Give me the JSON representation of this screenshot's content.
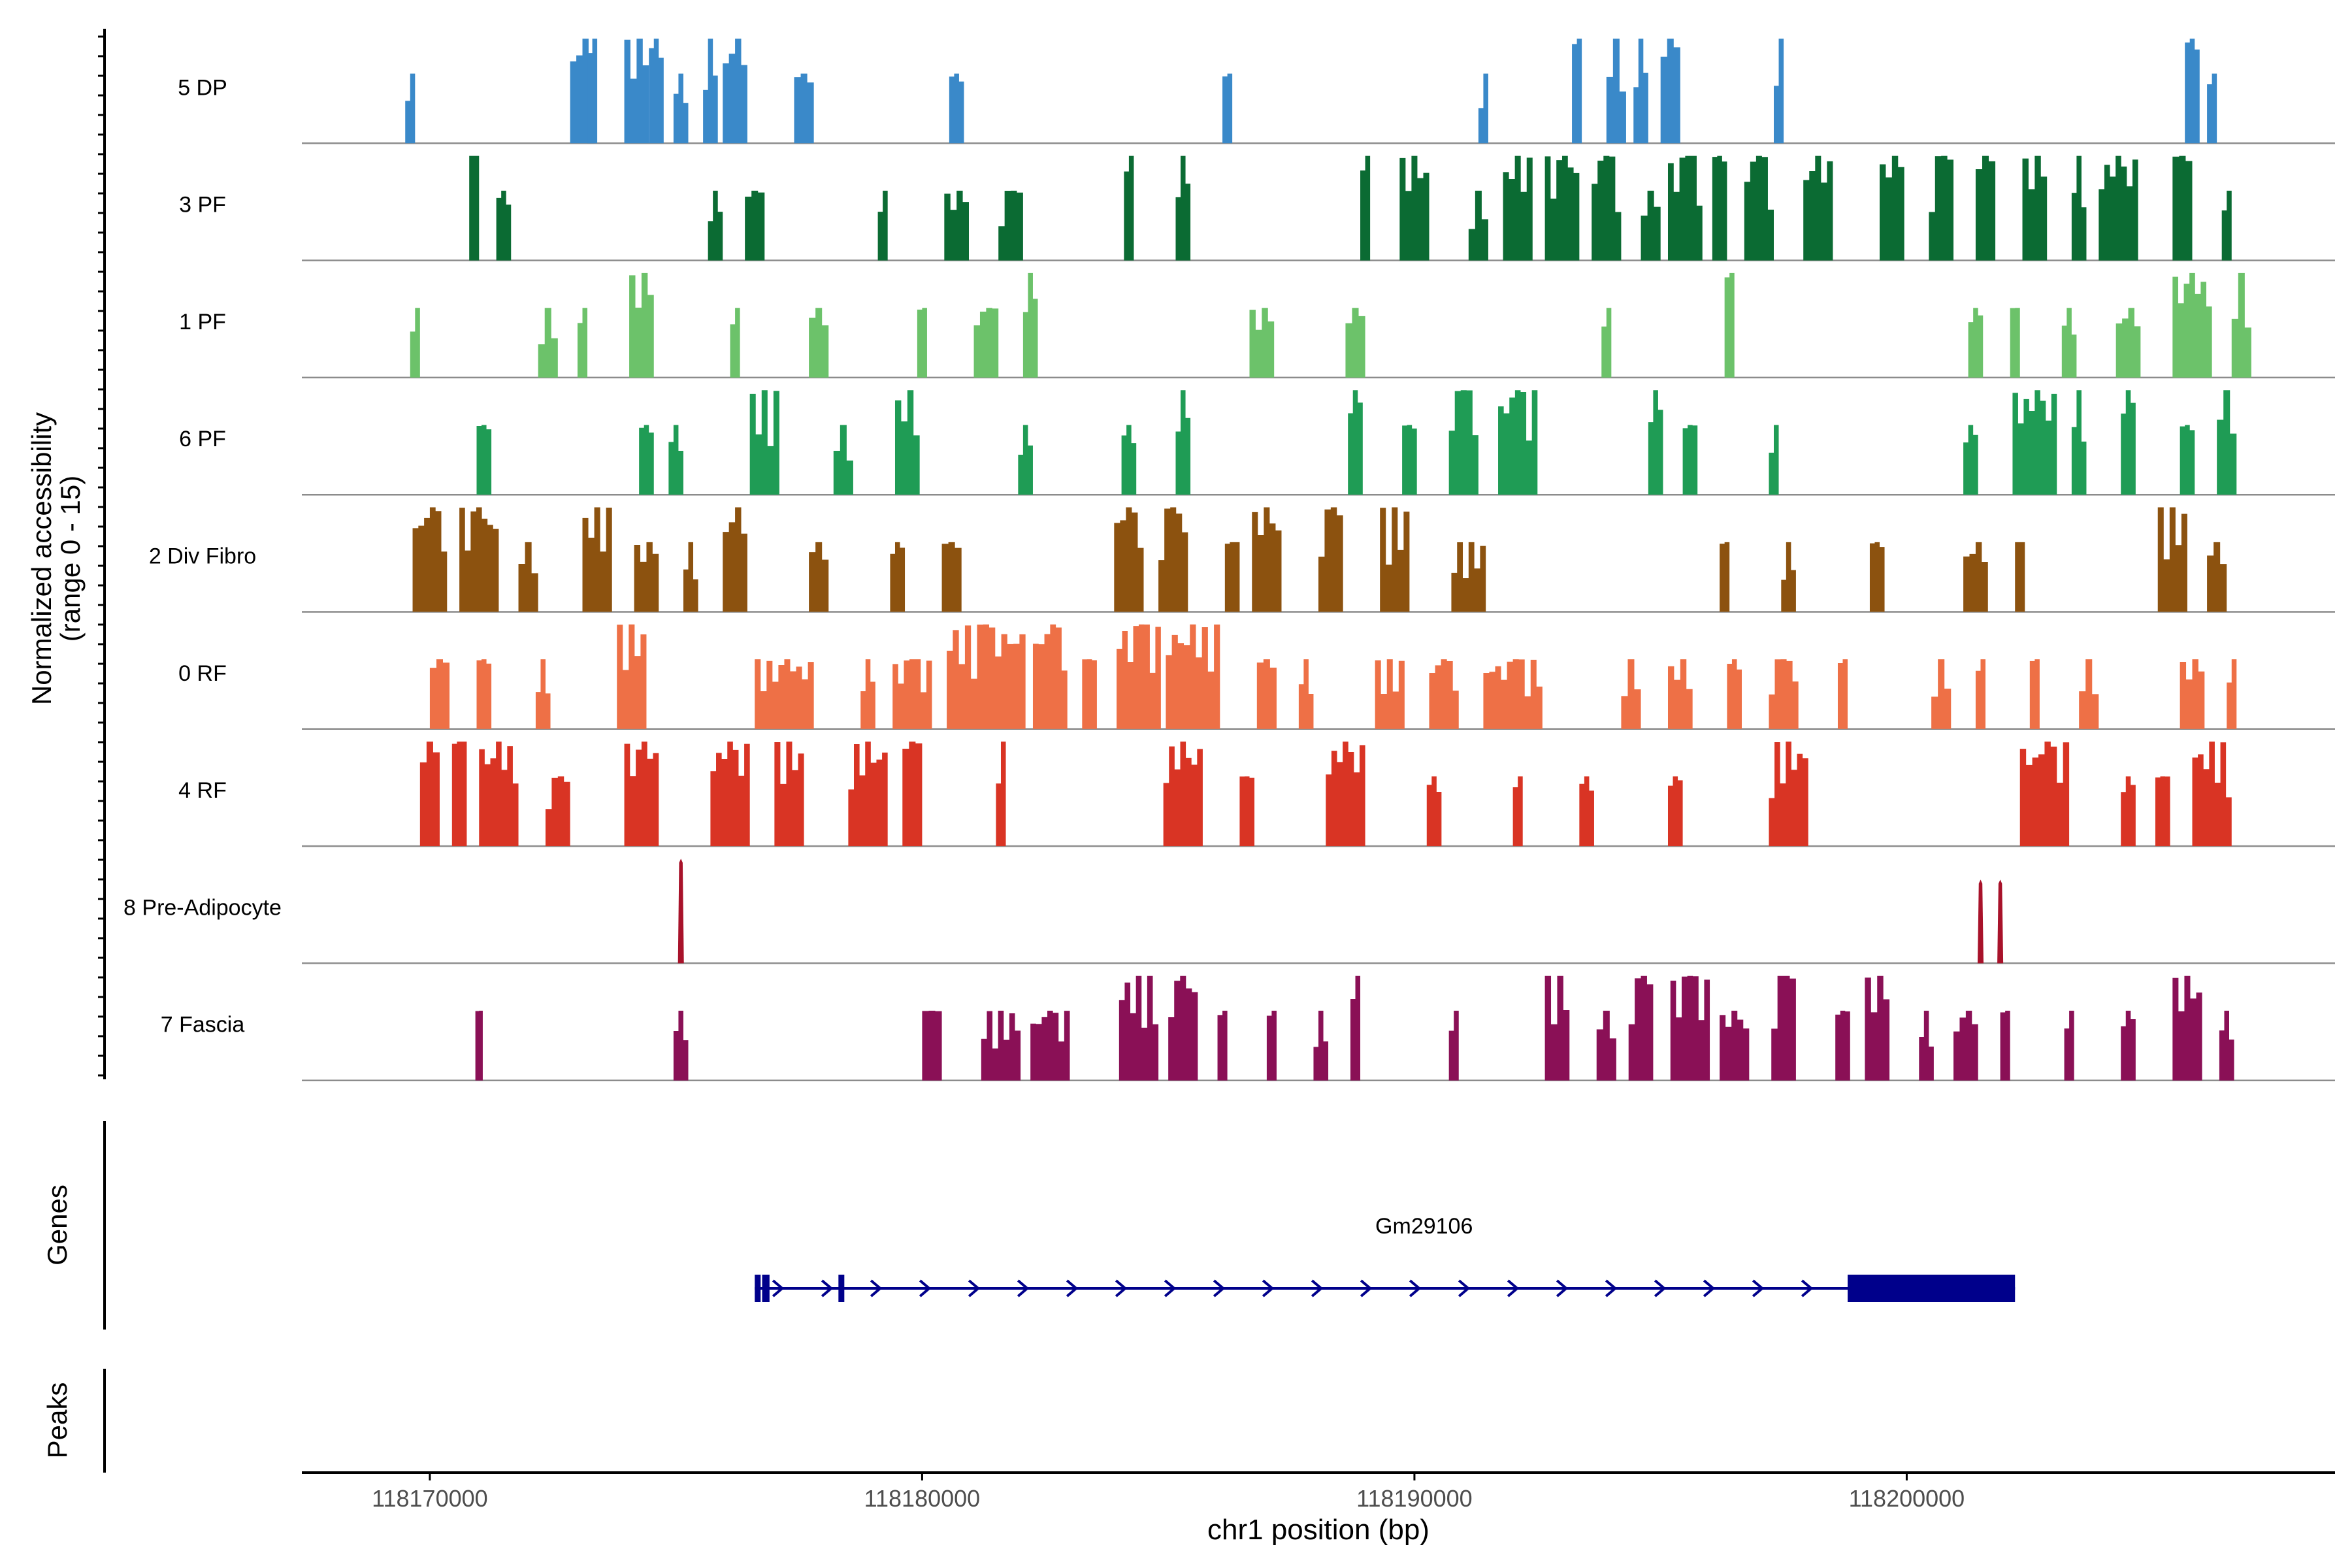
{
  "chart_data": {
    "type": "area",
    "title": "",
    "ylabel_line1": "Normalized accessibility",
    "ylabel_line2": "(range 0 - 15)",
    "ylim": [
      0,
      15
    ],
    "xlabel": "chr1 position (bp)",
    "xlim": [
      118167400,
      118208700
    ],
    "xticks": [
      118170000,
      118180000,
      118190000,
      118200000
    ],
    "xtick_labels": [
      "118170000",
      "118180000",
      "118190000",
      "118200000"
    ],
    "tracks": [
      {
        "name": "5 DP",
        "color": "#3a89c9",
        "height": 3,
        "peaks": [
          [
            118169.6,
            0.2,
            2
          ],
          [
            118173.1,
            0.5,
            4
          ],
          [
            118173.3,
            0.2,
            5
          ],
          [
            118174.2,
            0.5,
            3
          ],
          [
            118174.6,
            0.3,
            3
          ],
          [
            118175.1,
            0.3,
            2
          ],
          [
            118175.7,
            0.3,
            3
          ],
          [
            118176.2,
            0.5,
            3
          ],
          [
            118177.6,
            0.4,
            2
          ],
          [
            118180.7,
            0.3,
            2
          ],
          [
            118186.2,
            0.2,
            2
          ],
          [
            118191.4,
            0.2,
            2
          ],
          [
            118193.3,
            0.2,
            3
          ],
          [
            118194.1,
            0.4,
            3
          ],
          [
            118194.6,
            0.3,
            3
          ],
          [
            118195.2,
            0.4,
            4
          ],
          [
            118197.4,
            0.2,
            3
          ],
          [
            118205.8,
            0.3,
            3
          ],
          [
            118206.2,
            0.2,
            2
          ]
        ]
      },
      {
        "name": "3 PF",
        "color": "#0b6b33",
        "height": 3,
        "peaks": [
          [
            118170.9,
            0.2,
            3
          ],
          [
            118171.5,
            0.3,
            2
          ],
          [
            118175.8,
            0.3,
            2
          ],
          [
            118176.6,
            0.4,
            2
          ],
          [
            118179.2,
            0.2,
            2
          ],
          [
            118180.7,
            0.5,
            2
          ],
          [
            118181.8,
            0.5,
            2
          ],
          [
            118184.2,
            0.2,
            3
          ],
          [
            118185.3,
            0.3,
            3
          ],
          [
            118189,
            0.2,
            3
          ],
          [
            118190,
            0.6,
            3
          ],
          [
            118191.3,
            0.4,
            2
          ],
          [
            118192.1,
            0.6,
            4
          ],
          [
            118193,
            0.7,
            3
          ],
          [
            118193.9,
            0.6,
            4
          ],
          [
            118194.8,
            0.4,
            2
          ],
          [
            118195.5,
            0.7,
            5
          ],
          [
            118196.2,
            0.3,
            3
          ],
          [
            118197,
            0.6,
            3
          ],
          [
            118198.2,
            0.6,
            4
          ],
          [
            118199.7,
            0.5,
            3
          ],
          [
            118200.7,
            0.5,
            3
          ],
          [
            118201.6,
            0.4,
            4
          ],
          [
            118202.6,
            0.5,
            3
          ],
          [
            118203.5,
            0.3,
            3
          ],
          [
            118204.3,
            0.8,
            4
          ],
          [
            118205.6,
            0.4,
            4
          ],
          [
            118206.5,
            0.2,
            2
          ]
        ]
      },
      {
        "name": "1 PF",
        "color": "#6cc26a",
        "height": 3,
        "peaks": [
          [
            118169.7,
            0.2,
            2
          ],
          [
            118172.4,
            0.4,
            2
          ],
          [
            118173.1,
            0.2,
            2
          ],
          [
            118174.3,
            0.5,
            3
          ],
          [
            118176.2,
            0.2,
            2
          ],
          [
            118177.9,
            0.4,
            2
          ],
          [
            118180,
            0.2,
            2
          ],
          [
            118181.3,
            0.5,
            2
          ],
          [
            118182.2,
            0.3,
            3
          ],
          [
            118186.9,
            0.5,
            2
          ],
          [
            118188.8,
            0.4,
            2
          ],
          [
            118193.9,
            0.2,
            2
          ],
          [
            118196.4,
            0.2,
            3
          ],
          [
            118201.4,
            0.3,
            2
          ],
          [
            118202.2,
            0.2,
            2
          ],
          [
            118203.3,
            0.3,
            2
          ],
          [
            118204.5,
            0.5,
            2
          ],
          [
            118205.8,
            0.8,
            3
          ],
          [
            118206.8,
            0.4,
            4
          ]
        ]
      },
      {
        "name": "6 PF",
        "color": "#1f9c55",
        "height": 3,
        "peaks": [
          [
            118171.1,
            0.3,
            2
          ],
          [
            118174.4,
            0.3,
            2
          ],
          [
            118175,
            0.3,
            2
          ],
          [
            118176.8,
            0.6,
            5
          ],
          [
            118178.4,
            0.4,
            2
          ],
          [
            118179.7,
            0.5,
            3
          ],
          [
            118182.1,
            0.3,
            2
          ],
          [
            118184.2,
            0.3,
            2
          ],
          [
            118185.3,
            0.3,
            4
          ],
          [
            118188.8,
            0.3,
            3
          ],
          [
            118189.9,
            0.3,
            2
          ],
          [
            118191,
            0.6,
            4
          ],
          [
            118192.1,
            0.8,
            5
          ],
          [
            118194.9,
            0.3,
            3
          ],
          [
            118195.6,
            0.3,
            2
          ],
          [
            118197.3,
            0.2,
            2
          ],
          [
            118201.3,
            0.3,
            2
          ],
          [
            118202.6,
            0.9,
            3
          ],
          [
            118203.5,
            0.3,
            3
          ],
          [
            118204.5,
            0.3,
            3
          ],
          [
            118205.7,
            0.3,
            2
          ],
          [
            118206.5,
            0.4,
            4
          ]
        ]
      },
      {
        "name": "2 Div Fibro",
        "color": "#8c520f",
        "height": 3,
        "peaks": [
          [
            118170,
            0.7,
            3
          ],
          [
            118171,
            0.8,
            4
          ],
          [
            118172,
            0.4,
            2
          ],
          [
            118173.4,
            0.6,
            4
          ],
          [
            118174.4,
            0.5,
            2
          ],
          [
            118175.3,
            0.3,
            2
          ],
          [
            118176.2,
            0.5,
            3
          ],
          [
            118177.9,
            0.4,
            2
          ],
          [
            118179.5,
            0.3,
            2
          ],
          [
            118180.6,
            0.4,
            2
          ],
          [
            118184.2,
            0.6,
            5
          ],
          [
            118185.1,
            0.6,
            3
          ],
          [
            118186.3,
            0.3,
            2
          ],
          [
            118187,
            0.6,
            3
          ],
          [
            118188.3,
            0.5,
            4
          ],
          [
            118189.6,
            0.6,
            3
          ],
          [
            118191.1,
            0.7,
            2
          ],
          [
            118196.3,
            0.2,
            2
          ],
          [
            118197.6,
            0.3,
            2
          ],
          [
            118199.4,
            0.3,
            2
          ],
          [
            118201.4,
            0.5,
            2
          ],
          [
            118202.3,
            0.2,
            2
          ],
          [
            118205.4,
            0.6,
            3
          ],
          [
            118206.3,
            0.4,
            2
          ]
        ]
      },
      {
        "name": "0 RF",
        "color": "#ee7046",
        "height": 3,
        "peaks": [
          [
            118170.2,
            0.4,
            2
          ],
          [
            118171.1,
            0.3,
            2
          ],
          [
            118172.3,
            0.3,
            2
          ],
          [
            118174.1,
            0.6,
            3
          ],
          [
            118177.2,
            1.2,
            2
          ],
          [
            118178.9,
            0.3,
            2
          ],
          [
            118179.8,
            0.8,
            2
          ],
          [
            118181.3,
            1.6,
            4
          ],
          [
            118182.6,
            0.7,
            3
          ],
          [
            118183.4,
            0.3,
            2
          ],
          [
            118184.4,
            0.9,
            3
          ],
          [
            118185.5,
            1.1,
            3
          ],
          [
            118187,
            0.4,
            2
          ],
          [
            118187.8,
            0.3,
            2
          ],
          [
            118189.5,
            0.6,
            2
          ],
          [
            118190.6,
            0.6,
            2
          ],
          [
            118192,
            1.2,
            2
          ],
          [
            118194.4,
            0.4,
            2
          ],
          [
            118195.4,
            0.5,
            2
          ],
          [
            118196.5,
            0.3,
            2
          ],
          [
            118197.5,
            0.6,
            2
          ],
          [
            118198.7,
            0.2,
            2
          ],
          [
            118200.7,
            0.4,
            2
          ],
          [
            118201.5,
            0.2,
            2
          ],
          [
            118202.6,
            0.2,
            2
          ],
          [
            118203.7,
            0.4,
            2
          ],
          [
            118205.8,
            0.5,
            2
          ],
          [
            118206.6,
            0.2,
            2
          ]
        ]
      },
      {
        "name": "4 RF",
        "color": "#d93424",
        "height": 3,
        "peaks": [
          [
            118170,
            0.4,
            4
          ],
          [
            118170.6,
            0.3,
            10
          ],
          [
            118171.4,
            0.8,
            6
          ],
          [
            118172.6,
            0.5,
            2
          ],
          [
            118174.3,
            0.7,
            3
          ],
          [
            118176.1,
            0.8,
            3
          ],
          [
            118177.3,
            0.6,
            4
          ],
          [
            118178.9,
            0.8,
            3
          ],
          [
            118179.8,
            0.4,
            4
          ],
          [
            118181.6,
            0.2,
            3
          ],
          [
            118185.3,
            0.8,
            4
          ],
          [
            118186.6,
            0.3,
            2
          ],
          [
            118188.6,
            0.8,
            4
          ],
          [
            118190.4,
            0.3,
            2
          ],
          [
            118192.1,
            0.2,
            2
          ],
          [
            118193.5,
            0.3,
            2
          ],
          [
            118195.3,
            0.3,
            2
          ],
          [
            118197.6,
            0.8,
            4
          ],
          [
            118202.8,
            1,
            4
          ],
          [
            118204.5,
            0.3,
            2
          ],
          [
            118205.2,
            0.3,
            2
          ],
          [
            118206.2,
            0.8,
            4
          ]
        ]
      },
      {
        "name": "8 Pre-Adipocyte",
        "color": "#a8122a",
        "height": 15,
        "peaks": [
          [
            118175.1,
            0.12,
            15
          ],
          [
            118201.5,
            0.12,
            12
          ],
          [
            118201.9,
            0.12,
            12
          ]
        ]
      },
      {
        "name": "7 Fascia",
        "color": "#8a1056",
        "height": 3,
        "peaks": [
          [
            118171,
            0.15,
            2
          ],
          [
            118175.1,
            0.3,
            2
          ],
          [
            118180.2,
            0.4,
            2
          ],
          [
            118181.6,
            0.8,
            2
          ],
          [
            118182.6,
            0.8,
            2
          ],
          [
            118184.4,
            0.8,
            3
          ],
          [
            118185.3,
            0.6,
            4
          ],
          [
            118186.1,
            0.2,
            2
          ],
          [
            118187.1,
            0.2,
            2
          ],
          [
            118188.1,
            0.3,
            2
          ],
          [
            118188.8,
            0.2,
            3
          ],
          [
            118190.8,
            0.2,
            2
          ],
          [
            118192.9,
            0.5,
            3
          ],
          [
            118193.9,
            0.4,
            2
          ],
          [
            118194.6,
            0.5,
            3
          ],
          [
            118195.6,
            0.8,
            3
          ],
          [
            118196.5,
            0.6,
            2
          ],
          [
            118197.5,
            0.5,
            3
          ],
          [
            118198.7,
            0.3,
            2
          ],
          [
            118199.4,
            0.5,
            3
          ],
          [
            118200.4,
            0.3,
            2
          ],
          [
            118201.2,
            0.5,
            2
          ],
          [
            118202,
            0.2,
            2
          ],
          [
            118203.3,
            0.2,
            2
          ],
          [
            118204.5,
            0.3,
            2
          ],
          [
            118205.7,
            0.6,
            3
          ],
          [
            118206.5,
            0.3,
            2
          ]
        ]
      }
    ],
    "genes_label": "Genes",
    "gene": {
      "name": "Gm29106",
      "color": "#00008b",
      "start": 118176600,
      "end": 118202200,
      "strand": "+",
      "exons": [
        [
          118176600,
          118176700
        ],
        [
          118176750,
          118176900
        ],
        [
          118178300,
          118178400
        ],
        [
          118198800,
          118202200
        ]
      ]
    },
    "peaks_label": "Peaks"
  }
}
